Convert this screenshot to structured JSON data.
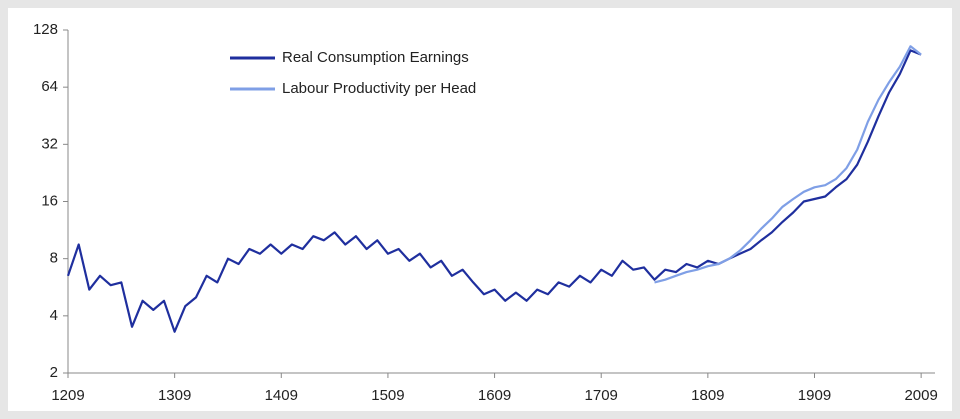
{
  "chart_data": {
    "type": "line",
    "x": [
      1209,
      1219,
      1229,
      1239,
      1249,
      1259,
      1269,
      1279,
      1289,
      1299,
      1309,
      1319,
      1329,
      1339,
      1349,
      1359,
      1369,
      1379,
      1389,
      1399,
      1409,
      1419,
      1429,
      1439,
      1449,
      1459,
      1469,
      1479,
      1489,
      1499,
      1509,
      1519,
      1529,
      1539,
      1549,
      1559,
      1569,
      1579,
      1589,
      1599,
      1609,
      1619,
      1629,
      1639,
      1649,
      1659,
      1669,
      1679,
      1689,
      1699,
      1709,
      1719,
      1729,
      1739,
      1749,
      1759,
      1769,
      1779,
      1789,
      1799,
      1809,
      1819,
      1829,
      1839,
      1849,
      1859,
      1869,
      1879,
      1889,
      1899,
      1909,
      1919,
      1929,
      1939,
      1949,
      1959,
      1969,
      1979,
      1989,
      1999,
      2009
    ],
    "series": [
      {
        "name": "Real Consumption Earnings",
        "color": "#1f2f9e",
        "values": [
          6.5,
          9.5,
          5.5,
          6.5,
          5.8,
          6,
          3.5,
          4.8,
          4.3,
          4.8,
          3.3,
          4.5,
          5,
          6.5,
          6,
          8,
          7.5,
          9,
          8.5,
          9.5,
          8.5,
          9.5,
          9,
          10.5,
          10,
          11,
          9.5,
          10.5,
          9,
          10,
          8.5,
          9,
          7.8,
          8.5,
          7.2,
          7.8,
          6.5,
          7,
          6,
          5.2,
          5.5,
          4.8,
          5.3,
          4.8,
          5.5,
          5.2,
          6,
          5.7,
          6.5,
          6,
          7,
          6.5,
          7.8,
          7,
          7.2,
          6.2,
          7,
          6.8,
          7.5,
          7.2,
          7.8,
          7.5,
          8,
          8.5,
          9,
          10,
          11,
          12.5,
          14,
          16,
          16.5,
          17,
          19,
          21,
          25,
          33,
          45,
          60,
          75,
          100,
          95
        ]
      },
      {
        "name": "Labour Productivity per Head",
        "color": "#7f9fe6",
        "values": [
          null,
          null,
          null,
          null,
          null,
          null,
          null,
          null,
          null,
          null,
          null,
          null,
          null,
          null,
          null,
          null,
          null,
          null,
          null,
          null,
          null,
          null,
          null,
          null,
          null,
          null,
          null,
          null,
          null,
          null,
          null,
          null,
          null,
          null,
          null,
          null,
          null,
          null,
          null,
          null,
          null,
          null,
          null,
          null,
          null,
          null,
          null,
          null,
          null,
          null,
          null,
          null,
          null,
          null,
          null,
          6,
          6.2,
          6.5,
          6.8,
          7,
          7.3,
          7.5,
          8,
          8.8,
          10,
          11.5,
          13,
          15,
          16.5,
          18,
          19,
          19.5,
          21,
          24,
          30,
          42,
          55,
          68,
          82,
          105,
          95
        ]
      }
    ],
    "xlim": [
      1209,
      2022
    ],
    "xticks": [
      1209,
      1309,
      1409,
      1509,
      1609,
      1709,
      1809,
      1909,
      2009
    ],
    "ylim": [
      2,
      128
    ],
    "yticks": [
      2,
      4,
      8,
      16,
      32,
      64,
      128
    ],
    "ylog": true,
    "grid": false,
    "legend": "upper left"
  }
}
